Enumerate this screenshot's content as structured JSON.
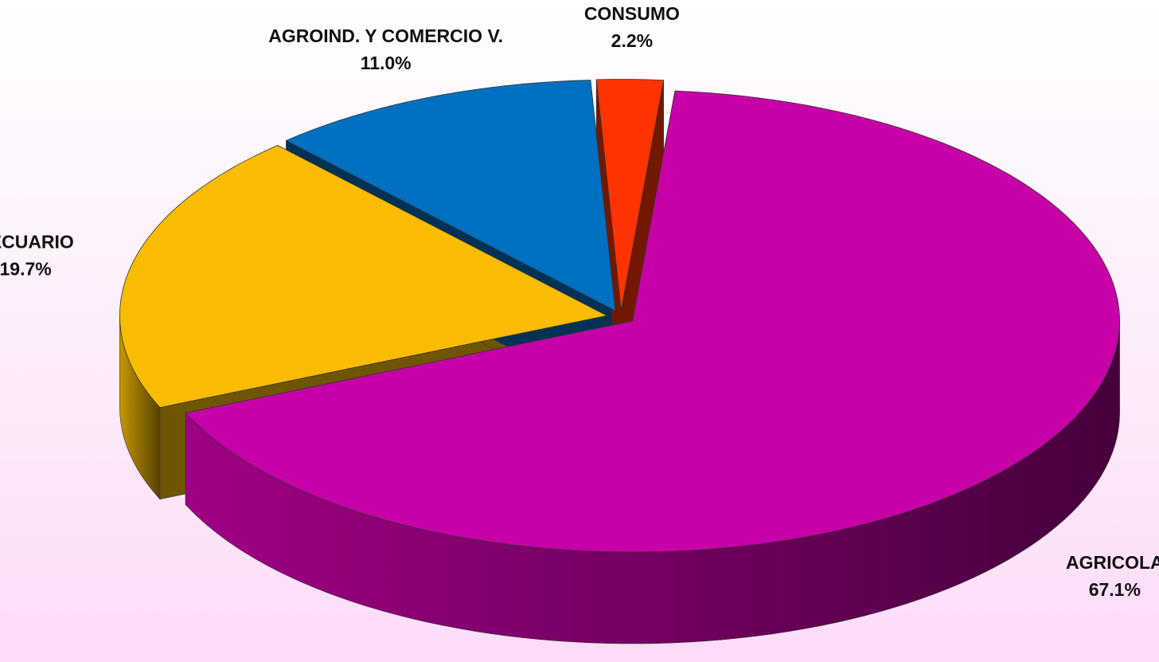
{
  "chart_data": {
    "type": "pie",
    "categories": [
      "AGRICOLA",
      "PECUARIO",
      "AGROIND. Y COMERCIO V.",
      "CONSUMO"
    ],
    "values": [
      67.1,
      19.7,
      11.0,
      2.2
    ],
    "value_labels": [
      "67.1%",
      "19.7%",
      "11.0%",
      "2.2%"
    ],
    "colors": [
      "#c800a8",
      "#f9bc00",
      "#0070c0",
      "#ff3300"
    ]
  }
}
